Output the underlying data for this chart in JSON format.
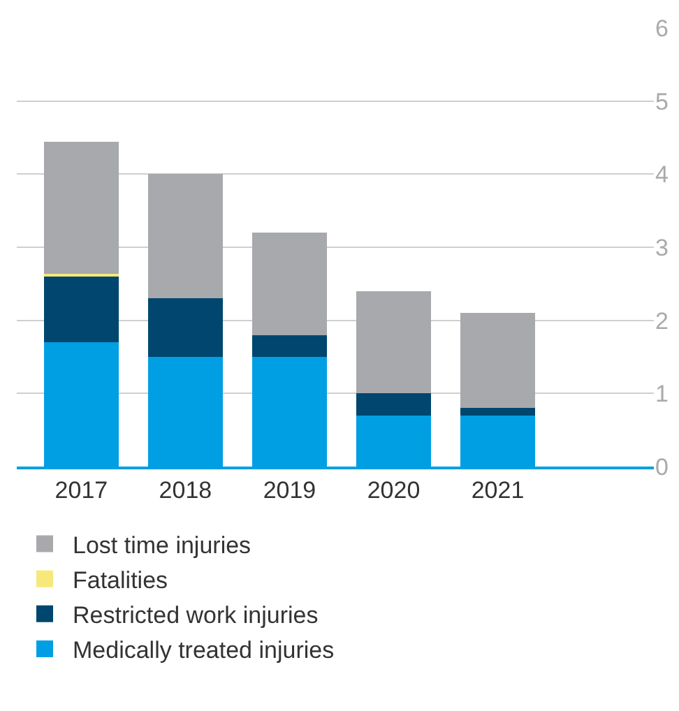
{
  "chart_data": {
    "type": "bar",
    "stacked": true,
    "categories": [
      "2017",
      "2018",
      "2019",
      "2020",
      "2021"
    ],
    "series": [
      {
        "name": "Medically treated injuries",
        "color": "#009fe3",
        "values": [
          1.7,
          1.5,
          1.5,
          0.7,
          0.7
        ]
      },
      {
        "name": "Restricted work injuries",
        "color": "#00466e",
        "values": [
          0.9,
          0.8,
          0.3,
          0.3,
          0.1
        ]
      },
      {
        "name": "Fatalities",
        "color": "#f7e87a",
        "values": [
          0.04,
          0,
          0,
          0,
          0
        ]
      },
      {
        "name": "Lost time injuries",
        "color": "#a7a9ac",
        "values": [
          1.8,
          1.7,
          1.4,
          1.4,
          1.3
        ]
      }
    ],
    "ylim": [
      0,
      6
    ],
    "yticks": [
      0,
      1,
      2,
      3,
      4,
      5,
      6
    ],
    "grid": "y",
    "legend": "bottom"
  }
}
